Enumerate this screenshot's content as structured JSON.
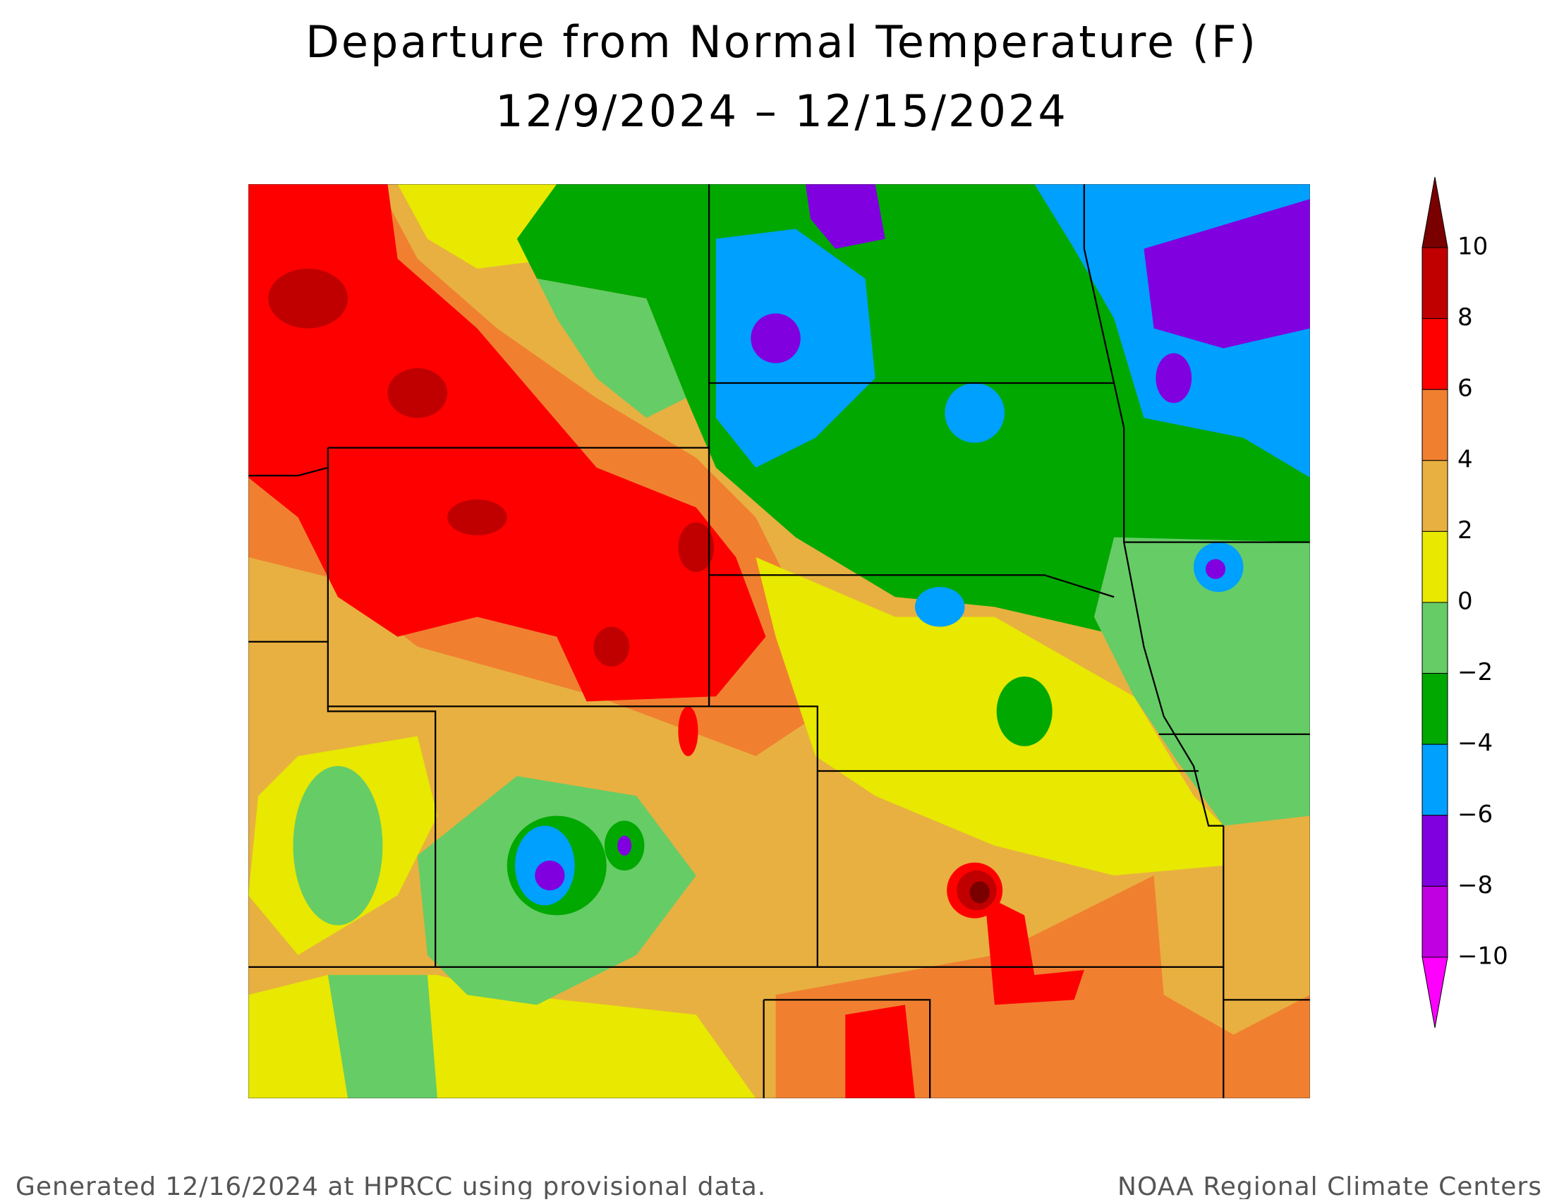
{
  "header": {
    "title": "Departure from Normal Temperature (F)",
    "subtitle": "12/9/2024 – 12/15/2024"
  },
  "colorbar": {
    "levels": [
      10,
      8,
      6,
      4,
      2,
      0,
      {
        "value": -2,
        "label": "−2"
      },
      {
        "value": -4,
        "label": "−4"
      },
      {
        "value": -6,
        "label": "−6"
      },
      {
        "value": -8,
        "label": "−8"
      },
      {
        "value": -10,
        "label": "−10"
      }
    ],
    "colors": [
      "#7a0000",
      "#c00000",
      "#ff0000",
      "#f08030",
      "#e8b040",
      "#e8e800",
      "#66cc66",
      "#00a800",
      "#00a0ff",
      "#8000e0",
      "#c000e0",
      "#ff00ff"
    ]
  },
  "footer": {
    "left": "Generated 12/16/2024 at HPRCC using provisional data.",
    "right": "NOAA Regional Climate Centers"
  }
}
